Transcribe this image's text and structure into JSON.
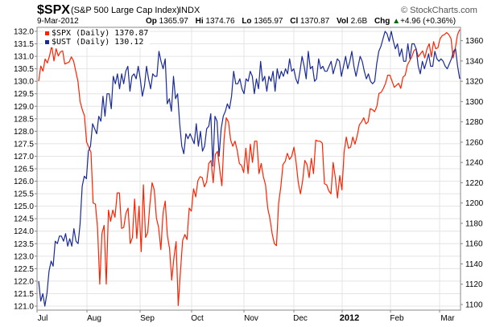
{
  "header": {
    "symbol": "$SPX",
    "name": "(S&P 500 Large Cap Index)",
    "exchange": "INDX",
    "brand": "© StockCharts.com",
    "date": "9-Mar-2012",
    "open_label": "Op",
    "open": "1365.97",
    "high_label": "Hi",
    "high": "1374.76",
    "low_label": "Lo",
    "low": "1365.97",
    "close_label": "Cl",
    "close": "1370.87",
    "volume_label": "Vol",
    "volume": "2.6B",
    "change_label": "Chg",
    "change": "+4.96 (+0.36%)",
    "change_icon": "triangle-up-icon"
  },
  "legend": [
    {
      "label": "$SPX (Daily) 1370.87",
      "color": "#ff2200"
    },
    {
      "label": "$UST (Daily) 130.12",
      "color": "#1a2a99"
    }
  ],
  "chart_data": {
    "type": "line",
    "left_axis": {
      "min": 121.0,
      "max": 132.0,
      "ticks": [
        "121.0",
        "121.5",
        "122.0",
        "122.5",
        "123.0",
        "123.5",
        "124.0",
        "124.5",
        "125.0",
        "125.5",
        "126.0",
        "126.5",
        "127.0",
        "127.5",
        "128.0",
        "128.5",
        "129.0",
        "129.5",
        "130.0",
        "130.5",
        "131.0",
        "131.5",
        "132.0"
      ]
    },
    "right_axis": {
      "min": 1100,
      "max": 1370,
      "ticks": [
        "1100",
        "1120",
        "1140",
        "1160",
        "1180",
        "1200",
        "1220",
        "1240",
        "1260",
        "1280",
        "1300",
        "1320",
        "1340",
        "1360"
      ]
    },
    "x_labels": [
      "Jul",
      "Aug",
      "Sep",
      "Oct",
      "Nov",
      "Dec",
      "2012",
      "Feb",
      "Mar"
    ],
    "x_labels_bold": [
      "2012"
    ],
    "grid": true,
    "series": [
      {
        "name": "$SPX (Daily)",
        "axis": "right",
        "color": "#ff2200",
        "values": [
          1320,
          1335,
          1330,
          1342,
          1338,
          1345,
          1355,
          1340,
          1352,
          1345,
          1349,
          1350,
          1337,
          1338,
          1339,
          1344,
          1340,
          1330,
          1320,
          1300,
          1292,
          1286,
          1260,
          1255,
          1250,
          1200,
          1199,
          1175,
          1120,
          1170,
          1178,
          1120,
          1193,
          1182,
          1193,
          1186,
          1210,
          1210,
          1175,
          1176,
          1190,
          1195,
          1160,
          1166,
          1204,
          1165,
          1197,
          1152,
          1218,
          1166,
          1171,
          1199,
          1220,
          1213,
          1185,
          1176,
          1154,
          1190,
          1202,
          1168,
          1155,
          1124,
          1146,
          1162,
          1099,
          1132,
          1163,
          1169,
          1164,
          1195,
          1192,
          1214,
          1206,
          1222,
          1226,
          1225,
          1216,
          1221,
          1239,
          1242,
          1220,
          1248,
          1251,
          1233,
          1217,
          1263,
          1284,
          1280,
          1262,
          1256,
          1261,
          1252,
          1239,
          1237,
          1230,
          1254,
          1229,
          1258,
          1240,
          1261,
          1261,
          1229,
          1239,
          1226,
          1218,
          1195,
          1185,
          1170,
          1160,
          1158,
          1200,
          1216,
          1238,
          1241,
          1249,
          1243,
          1246,
          1255,
          1240,
          1220,
          1209,
          1222,
          1242,
          1238,
          1225,
          1244,
          1229,
          1262,
          1261,
          1261,
          1259,
          1219,
          1218,
          1212,
          1209,
          1240,
          1225,
          1205,
          1227,
          1213,
          1250,
          1265,
          1254,
          1255,
          1265,
          1258,
          1266,
          1277,
          1280,
          1284,
          1278,
          1280,
          1293,
          1292,
          1290,
          1295,
          1308,
          1309,
          1313,
          1318,
          1326,
          1326,
          1320,
          1314,
          1316,
          1318,
          1313,
          1324,
          1326,
          1336,
          1340,
          1344,
          1350,
          1352,
          1344,
          1347,
          1350,
          1343,
          1352,
          1357,
          1344,
          1359,
          1352,
          1353,
          1362,
          1365,
          1366,
          1368,
          1366,
          1362,
          1343,
          1353,
          1366,
          1371
        ]
      },
      {
        "name": "$UST (Daily)",
        "axis": "left",
        "color": "#1a2a99",
        "values": [
          122.0,
          121.2,
          121.5,
          121.0,
          121.5,
          122.4,
          122.8,
          122.6,
          123.6,
          123.5,
          123.8,
          123.8,
          123.6,
          123.9,
          123.4,
          123.7,
          123.4,
          124.1,
          123.6,
          123.5,
          124.3,
          125.8,
          126.2,
          126.1,
          127.2,
          127.4,
          128.3,
          128.1,
          127.9,
          128.6,
          128.4,
          129.4,
          128.6,
          129.5,
          129.5,
          128.9,
          130.2,
          129.9,
          130.3,
          129.7,
          130.3,
          129.9,
          130.4,
          130.6,
          129.6,
          130.2,
          130.3,
          130.1,
          130.6,
          130.1,
          129.4,
          129.8,
          130.6,
          130.1,
          129.7,
          130.3,
          130.2,
          130.2,
          131.2,
          130.8,
          130.5,
          130.9,
          129.1,
          129.3,
          128.8,
          130.2,
          129.3,
          129.5,
          128.3,
          127.4,
          127.1,
          127.9,
          127.7,
          127.9,
          127.7,
          127.5,
          128.3,
          127.4,
          128.0,
          127.2,
          127.4,
          128.1,
          128.2,
          128.7,
          126.6,
          128.6,
          128.4,
          127.0,
          128.1,
          128.6,
          128.8,
          129.1,
          128.9,
          129.4,
          130.4,
          129.9,
          129.9,
          130.1,
          129.7,
          129.5,
          130.1,
          130.0,
          130.4,
          130.2,
          129.5,
          130.1,
          129.7,
          130.8,
          130.0,
          130.2,
          129.6,
          130.2,
          130.0,
          130.4,
          129.6,
          130.5,
          130.1,
          130.4,
          130.2,
          130.5,
          130.3,
          130.9,
          130.4,
          130.5,
          130.1,
          129.9,
          130.4,
          131.0,
          130.6,
          130.1,
          131.2,
          130.5,
          130.6,
          130.0,
          130.1,
          130.9,
          130.5,
          130.6,
          130.4,
          130.4,
          130.6,
          130.8,
          130.3,
          130.6,
          130.9,
          130.8,
          130.2,
          130.6,
          131.0,
          130.5,
          130.8,
          131.2,
          130.6,
          130.2,
          130.6,
          131.0,
          130.8,
          130.4,
          130.1,
          130.3,
          130.0,
          129.9,
          130.0,
          130.7,
          131.2,
          131.4,
          131.7,
          132.0,
          131.9,
          131.6,
          132.0,
          131.6,
          131.3,
          131.5,
          131.0,
          131.3,
          130.8,
          130.8,
          131.5,
          130.9,
          131.5,
          131.5,
          131.3,
          130.6,
          130.3,
          130.8,
          130.5,
          130.8,
          131.1,
          130.6,
          130.6,
          131.2,
          130.9,
          130.8,
          130.9,
          130.8,
          130.6,
          130.5,
          130.7,
          130.9,
          131.2,
          131.3,
          130.6,
          130.1
        ]
      }
    ]
  }
}
